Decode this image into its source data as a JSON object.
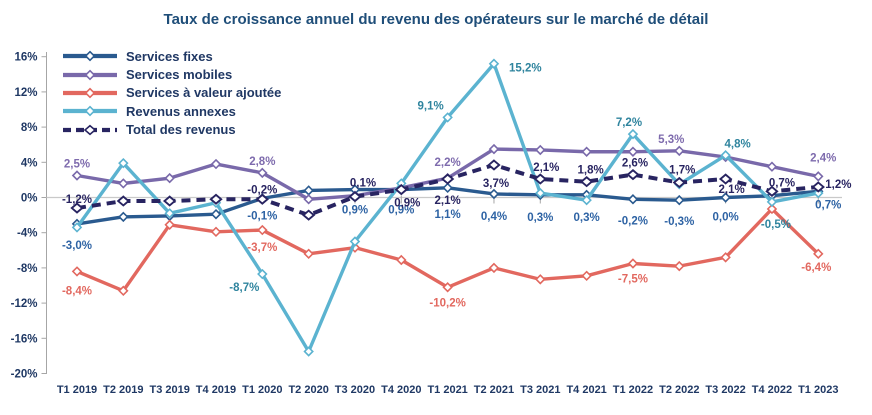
{
  "title": "Taux de croissance annuel du revenu des opérateurs sur le marché de détail",
  "colors": {
    "title_text": "#1F4E79",
    "axis_text": "#1F3864",
    "axis_line": "#A6A6A6",
    "zero_line": "#C9C9C9",
    "background": "#FFFFFF"
  },
  "chart_data": {
    "type": "line",
    "title": "Taux de croissance annuel du revenu des opérateurs sur le marché de détail",
    "xlabel": "",
    "ylabel": "",
    "grid": "zero-line-only",
    "decimal_separator": ",",
    "legend": {
      "position": "top-left-inside",
      "items": [
        "Services fixes",
        "Services mobiles",
        "Services à valeur ajoutée",
        "Revenus annexes",
        "Total des revenus"
      ]
    },
    "y_axis": {
      "range": [
        -20,
        16
      ],
      "ticks": [
        16,
        12,
        8,
        4,
        0,
        -4,
        -8,
        -12,
        -16,
        -20
      ],
      "tick_labels": [
        "16%",
        "12%",
        "8%",
        "4%",
        "0%",
        "-4%",
        "-8%",
        "-12%",
        "-16%",
        "-20%"
      ]
    },
    "categories": [
      "T1 2019",
      "T2 2019",
      "T3 2019",
      "T4 2019",
      "T1 2020",
      "T2 2020",
      "T3 2020",
      "T4 2020",
      "T1 2021",
      "T2 2021",
      "T3 2021",
      "T4 2021",
      "T1 2022",
      "T2 2022",
      "T3 2022",
      "T4 2022",
      "T1 2023"
    ],
    "series": [
      {
        "name": "Services fixes",
        "color": "#2A5A8F",
        "label_color": "#2E63A4",
        "style": "solid",
        "values": [
          -3.0,
          -2.2,
          -2.1,
          -1.9,
          -0.1,
          0.8,
          0.9,
          0.9,
          1.1,
          0.4,
          0.3,
          0.3,
          -0.2,
          -0.3,
          0.0,
          0.2,
          0.7
        ],
        "point_labels": [
          {
            "q": 0,
            "text": "-3,0%",
            "pos": "below",
            "dy": 8
          },
          {
            "q": 4,
            "text": "-0,1%",
            "pos": "below",
            "dy": 4
          },
          {
            "q": 6,
            "text": "0,9%",
            "pos": "below",
            "dy": 7
          },
          {
            "q": 7,
            "text": "0,9%",
            "pos": "below",
            "dy": 7
          },
          {
            "q": 8,
            "text": "1,1%",
            "pos": "below",
            "dy": 13
          },
          {
            "q": 9,
            "text": "0,4%",
            "pos": "below",
            "dy": 9
          },
          {
            "q": 10,
            "text": "0,3%",
            "pos": "below",
            "dy": 9
          },
          {
            "q": 11,
            "text": "0,3%",
            "pos": "below",
            "dy": 9
          },
          {
            "q": 12,
            "text": "-0,2%",
            "pos": "below",
            "dy": 8
          },
          {
            "q": 13,
            "text": "-0,3%",
            "pos": "below",
            "dy": 8
          },
          {
            "q": 14,
            "text": "0,0%",
            "pos": "below",
            "dy": 6
          },
          {
            "q": 16,
            "text": "0,7%",
            "pos": "below",
            "dx": 10
          }
        ]
      },
      {
        "name": "Services mobiles",
        "color": "#7969AA",
        "label_color": "#7E6BAD",
        "style": "solid",
        "values": [
          2.5,
          1.6,
          2.2,
          3.8,
          2.8,
          -0.2,
          0.2,
          1.1,
          2.2,
          5.5,
          5.4,
          5.2,
          5.2,
          5.3,
          4.6,
          3.5,
          2.4
        ],
        "point_labels": [
          {
            "q": 0,
            "text": "2,5%",
            "pos": "above"
          },
          {
            "q": 4,
            "text": "2,8%",
            "pos": "above"
          },
          {
            "q": 8,
            "text": "2,2%",
            "pos": "above",
            "dy": -4
          },
          {
            "q": 13,
            "text": "5,3%",
            "pos": "above",
            "dx": -8
          },
          {
            "q": 16,
            "text": "2,4%",
            "pos": "above",
            "dx": 5,
            "dy": -7
          }
        ]
      },
      {
        "name": "Services à valeur ajoutée",
        "color": "#E2685F",
        "label_color": "#E2685F",
        "style": "solid",
        "values": [
          -8.4,
          -10.6,
          -3.1,
          -3.9,
          -3.7,
          -6.4,
          -5.7,
          -7.1,
          -10.2,
          -8.0,
          -9.3,
          -8.9,
          -7.5,
          -7.8,
          -6.8,
          -1.3,
          -6.4
        ],
        "point_labels": [
          {
            "q": 0,
            "text": "-8,4%",
            "pos": "below",
            "dy": 6
          },
          {
            "q": 4,
            "text": "-3,7%",
            "pos": "below",
            "dy": 4
          },
          {
            "q": 8,
            "text": "-10,2%",
            "pos": "below",
            "dy": 2
          },
          {
            "q": 12,
            "text": "-7,5%",
            "pos": "below",
            "dy": 2
          },
          {
            "q": 16,
            "text": "-6,4%",
            "pos": "below",
            "dx": -2
          }
        ]
      },
      {
        "name": "Revenus annexes",
        "color": "#5BB3D0",
        "label_color": "#2F849E",
        "style": "solid",
        "values": [
          -3.4,
          3.9,
          -1.8,
          -0.6,
          -8.7,
          -17.5,
          -5.0,
          1.6,
          9.1,
          15.2,
          0.5,
          -0.3,
          7.2,
          1.5,
          4.8,
          -0.5,
          0.5
        ],
        "point_labels": [
          {
            "q": 4,
            "text": "-8,7%",
            "pos": "below",
            "dx": -18
          },
          {
            "q": 8,
            "text": "9,1%",
            "pos": "above",
            "dx": -17
          },
          {
            "q": 9,
            "text": "15,2%",
            "pos": "right",
            "dx": 6,
            "dy": 4
          },
          {
            "q": 12,
            "text": "7,2%",
            "pos": "above",
            "dx": -4
          },
          {
            "q": 14,
            "text": "4,8%",
            "pos": "above",
            "dx": 12
          },
          {
            "q": 15,
            "text": "-0,5%",
            "pos": "below",
            "dx": 4,
            "dy": 9
          }
        ]
      },
      {
        "name": "Total des revenus",
        "color": "#282461",
        "label_color": "#282461",
        "style": "dashed",
        "values": [
          -1.2,
          -0.4,
          -0.4,
          -0.2,
          -0.2,
          -2.0,
          0.1,
          0.9,
          2.1,
          3.7,
          2.1,
          1.8,
          2.6,
          1.7,
          2.1,
          0.7,
          1.2
        ],
        "point_labels": [
          {
            "q": 0,
            "text": "-1,2%",
            "pos": "above",
            "dy": 3
          },
          {
            "q": 4,
            "text": "-0,2%",
            "pos": "above",
            "dy": 2
          },
          {
            "q": 6,
            "text": "0,1%",
            "pos": "above",
            "dx": 8,
            "dy": -2
          },
          {
            "q": 7,
            "text": "0,9%",
            "pos": "below",
            "dx": 6
          },
          {
            "q": 8,
            "text": "2,1%",
            "pos": "below",
            "dy": 8
          },
          {
            "q": 9,
            "text": "3,7%",
            "pos": "below",
            "dx": 2,
            "dy": 5
          },
          {
            "q": 10,
            "text": "2,1%",
            "pos": "above",
            "dx": 6
          },
          {
            "q": 11,
            "text": "1,8%",
            "pos": "above",
            "dx": 4
          },
          {
            "q": 12,
            "text": "2,6%",
            "pos": "above",
            "dx": 2
          },
          {
            "q": 13,
            "text": "1,7%",
            "pos": "above",
            "dx": 3,
            "dy": -1
          },
          {
            "q": 14,
            "text": "2,1%",
            "pos": "below",
            "dx": 6,
            "dy": -3
          },
          {
            "q": 15,
            "text": "0,7%",
            "pos": "above",
            "dx": 10,
            "dy": 3
          },
          {
            "q": 16,
            "text": "1,2%",
            "pos": "right",
            "dx": -2,
            "dy": -3
          }
        ]
      }
    ]
  }
}
